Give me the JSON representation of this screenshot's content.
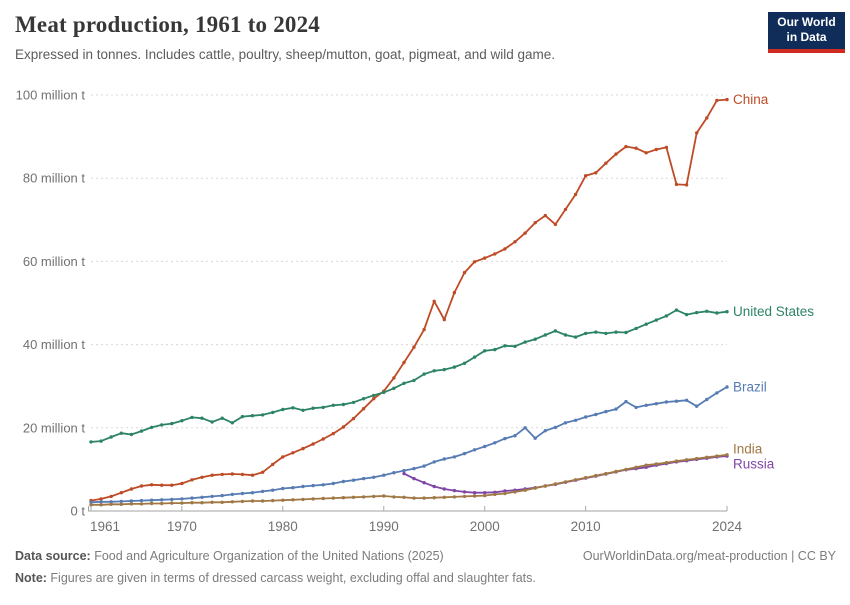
{
  "header": {
    "title": "Meat production, 1961 to 2024",
    "subtitle": "Expressed in tonnes. Includes cattle, poultry, sheep/mutton, goat, pigmeat, and wild game."
  },
  "logo": {
    "line1": "Our World",
    "line2": "in Data",
    "bg_color": "#102D59",
    "bar_color": "#D02B20"
  },
  "footer": {
    "source_label": "Data source:",
    "source_text": " Food and Agriculture Organization of the United Nations (2025)",
    "note_label": "Note:",
    "note_text": " Figures are given in terms of dressed carcass weight, excluding offal and slaughter fats.",
    "link_text": "OurWorldinData.org/meat-production | CC BY"
  },
  "chart_data": {
    "type": "line",
    "title": "Meat production, 1961 to 2024",
    "xlabel": "",
    "ylabel": "",
    "ylim": [
      0,
      100
    ],
    "yticks": [
      0,
      20,
      40,
      60,
      80,
      100
    ],
    "ytick_labels": [
      "0 t",
      "20 million t",
      "40 million t",
      "60 million t",
      "80 million t",
      "100 million t"
    ],
    "xticks": [
      1961,
      1970,
      1980,
      1990,
      2000,
      2010,
      2024
    ],
    "grid": "horizontal-dashed",
    "legend": "end-of-line-labels",
    "marker": "dot",
    "years": [
      1961,
      1962,
      1963,
      1964,
      1965,
      1966,
      1967,
      1968,
      1969,
      1970,
      1971,
      1972,
      1973,
      1974,
      1975,
      1976,
      1977,
      1978,
      1979,
      1980,
      1981,
      1982,
      1983,
      1984,
      1985,
      1986,
      1987,
      1988,
      1989,
      1990,
      1991,
      1992,
      1993,
      1994,
      1995,
      1996,
      1997,
      1998,
      1999,
      2000,
      2001,
      2002,
      2003,
      2004,
      2005,
      2006,
      2007,
      2008,
      2009,
      2010,
      2011,
      2012,
      2013,
      2014,
      2015,
      2016,
      2017,
      2018,
      2019,
      2020,
      2021,
      2022,
      2023,
      2024
    ],
    "series": [
      {
        "name": "China",
        "color": "#BE4B26",
        "values": [
          2.5,
          2.9,
          3.5,
          4.4,
          5.3,
          6.0,
          6.3,
          6.2,
          6.2,
          6.6,
          7.5,
          8.1,
          8.6,
          8.8,
          8.9,
          8.8,
          8.6,
          9.3,
          11.2,
          13.0,
          14.0,
          15.0,
          16.1,
          17.3,
          18.6,
          20.2,
          22.2,
          24.6,
          27.0,
          28.8,
          32.0,
          35.7,
          39.4,
          43.6,
          50.4,
          46.0,
          52.5,
          57.3,
          59.9,
          60.8,
          61.8,
          63.0,
          64.7,
          66.8,
          69.3,
          71.0,
          68.9,
          72.5,
          76.1,
          80.6,
          81.3,
          83.6,
          85.8,
          87.6,
          87.2,
          86.1,
          86.9,
          87.4,
          78.5,
          78.4,
          90.9,
          94.5,
          98.7,
          98.9
        ]
      },
      {
        "name": "United States",
        "color": "#2C8465",
        "values": [
          16.6,
          16.8,
          17.8,
          18.7,
          18.4,
          19.2,
          20.1,
          20.7,
          21.0,
          21.7,
          22.5,
          22.3,
          21.4,
          22.3,
          21.2,
          22.7,
          22.9,
          23.1,
          23.7,
          24.4,
          24.8,
          24.2,
          24.7,
          24.9,
          25.4,
          25.6,
          26.1,
          27.0,
          27.8,
          28.5,
          29.5,
          30.7,
          31.4,
          32.9,
          33.7,
          34.0,
          34.6,
          35.5,
          37.0,
          38.5,
          38.8,
          39.7,
          39.6,
          40.6,
          41.3,
          42.3,
          43.3,
          42.3,
          41.8,
          42.7,
          43.0,
          42.7,
          43.0,
          42.9,
          43.9,
          44.9,
          45.9,
          46.9,
          48.3,
          47.2,
          47.7,
          48.0,
          47.6,
          47.9
        ]
      },
      {
        "name": "Brazil",
        "color": "#577CB4",
        "values": [
          2.1,
          2.2,
          2.2,
          2.3,
          2.4,
          2.5,
          2.6,
          2.7,
          2.8,
          2.9,
          3.1,
          3.3,
          3.5,
          3.7,
          4.0,
          4.2,
          4.4,
          4.7,
          5.0,
          5.4,
          5.6,
          5.9,
          6.1,
          6.3,
          6.6,
          7.1,
          7.4,
          7.8,
          8.1,
          8.6,
          9.2,
          9.7,
          10.2,
          10.8,
          11.8,
          12.5,
          13.0,
          13.8,
          14.7,
          15.5,
          16.4,
          17.4,
          18.1,
          20.0,
          17.5,
          19.3,
          20.1,
          21.2,
          21.8,
          22.6,
          23.2,
          23.9,
          24.5,
          26.3,
          24.9,
          25.4,
          25.8,
          26.2,
          26.4,
          26.6,
          25.2,
          26.8,
          28.4,
          29.8
        ]
      },
      {
        "name": "Russia",
        "color": "#7F46A8",
        "values": [
          null,
          null,
          null,
          null,
          null,
          null,
          null,
          null,
          null,
          null,
          null,
          null,
          null,
          null,
          null,
          null,
          null,
          null,
          null,
          null,
          null,
          null,
          null,
          null,
          null,
          null,
          null,
          null,
          null,
          null,
          null,
          9.0,
          7.8,
          6.8,
          5.9,
          5.3,
          4.9,
          4.6,
          4.4,
          4.4,
          4.5,
          4.8,
          5.0,
          5.3,
          5.6,
          6.0,
          6.4,
          6.9,
          7.4,
          7.9,
          8.4,
          8.9,
          9.4,
          9.9,
          10.2,
          10.5,
          11.0,
          11.4,
          11.8,
          12.1,
          12.4,
          12.7,
          13.0,
          13.2
        ]
      },
      {
        "name": "India",
        "color": "#A07845",
        "values": [
          1.5,
          1.5,
          1.6,
          1.6,
          1.7,
          1.7,
          1.8,
          1.8,
          1.9,
          1.9,
          2.0,
          2.0,
          2.1,
          2.1,
          2.2,
          2.3,
          2.4,
          2.4,
          2.5,
          2.6,
          2.7,
          2.8,
          2.9,
          3.0,
          3.1,
          3.2,
          3.3,
          3.4,
          3.5,
          3.6,
          3.4,
          3.3,
          3.1,
          3.1,
          3.2,
          3.3,
          3.4,
          3.5,
          3.6,
          3.7,
          4.0,
          4.2,
          4.6,
          5.0,
          5.5,
          6.0,
          6.5,
          7.0,
          7.5,
          8.0,
          8.5,
          9.0,
          9.5,
          10.0,
          10.5,
          11.0,
          11.3,
          11.6,
          12.0,
          12.3,
          12.6,
          12.9,
          13.2,
          13.5
        ]
      }
    ],
    "label_order_right": [
      "China",
      "United States",
      "Brazil",
      "India",
      "Russia"
    ]
  }
}
